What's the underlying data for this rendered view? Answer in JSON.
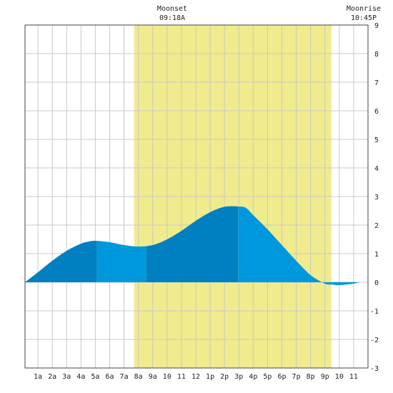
{
  "chart_data": {
    "type": "area",
    "annotations": {
      "moonset": {
        "label": "Moonset",
        "time": "09:18A"
      },
      "moonrise": {
        "label": "Moonrise",
        "time": "10:45P"
      }
    },
    "daylight_hours": [
      6.7,
      20.45
    ],
    "xlim": [
      -0.9,
      23
    ],
    "ylim": [
      -3,
      9
    ],
    "x_tick_labels": [
      "1a",
      "2a",
      "3a",
      "4a",
      "5a",
      "6a",
      "7a",
      "8a",
      "9a",
      "10",
      "11",
      "12",
      "1p",
      "2p",
      "3p",
      "4p",
      "5p",
      "6p",
      "7p",
      "8p",
      "9p",
      "10",
      "11"
    ],
    "y_tick_labels": [
      "-3",
      "-2",
      "-1",
      "0",
      "1",
      "2",
      "3",
      "4",
      "5",
      "6",
      "7",
      "8",
      "9"
    ],
    "series": [
      {
        "hours": [
          -0.9,
          0,
          1,
          2,
          3,
          3.5,
          4,
          5,
          6,
          7,
          8,
          9,
          10,
          11,
          12,
          13,
          14,
          14.5,
          15,
          16,
          17,
          18,
          19,
          20,
          20.5,
          21,
          22,
          22.5,
          23
        ],
        "values": [
          0.0,
          0.35,
          0.75,
          1.1,
          1.35,
          1.42,
          1.45,
          1.4,
          1.3,
          1.25,
          1.3,
          1.5,
          1.8,
          2.15,
          2.45,
          2.64,
          2.65,
          2.6,
          2.35,
          1.85,
          1.3,
          0.75,
          0.25,
          -0.05,
          -0.08,
          -0.1,
          -0.05,
          0.02,
          0.05
        ]
      }
    ],
    "band_boundaries": [
      -0.9,
      4.1,
      7.55,
      13.95,
      22.4
    ],
    "colors": {
      "fill_dark": "#0080c0",
      "fill_light": "#0098dc",
      "daylight": "#f0eb8c",
      "grid": "#c8c8c8",
      "axis": "#444444"
    }
  }
}
